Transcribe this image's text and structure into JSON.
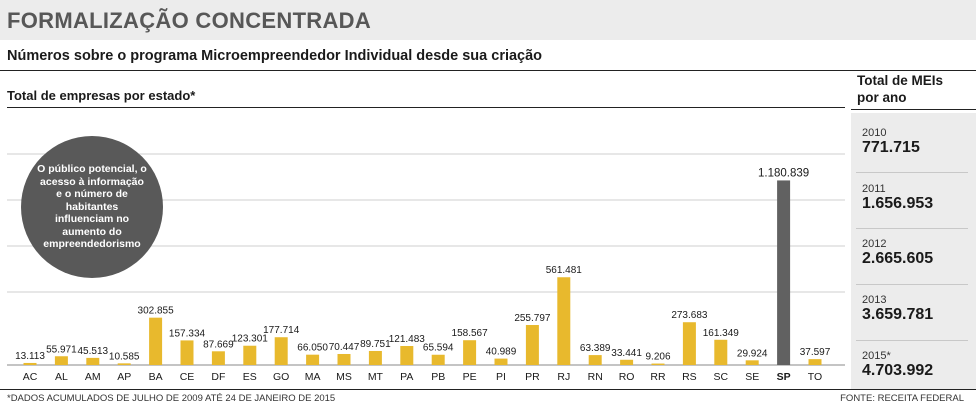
{
  "header": {
    "title": "FORMALIZAÇÃO CONCENTRADA",
    "subtitle": "Números sobre o programa Microempreendedor Individual desde sua criação",
    "chart_label": "Total de empresas por estado*"
  },
  "bubble_text": "O público potencial, o acesso à informação e o número de habitantes influenciam no aumento do empreendedorismo",
  "colors": {
    "bar": "#e8b92d",
    "highlight": "#616161",
    "grid": "#cfcfcf",
    "panel": "#ececec"
  },
  "chart_data": {
    "type": "bar",
    "title": "Total de empresas por estado*",
    "categories": [
      "AC",
      "AL",
      "AM",
      "AP",
      "BA",
      "CE",
      "DF",
      "ES",
      "GO",
      "MA",
      "MS",
      "MT",
      "PA",
      "PB",
      "PE",
      "PI",
      "PR",
      "RJ",
      "RN",
      "RO",
      "RR",
      "RS",
      "SC",
      "SE",
      "SP",
      "TO"
    ],
    "values": [
      13113,
      55971,
      45513,
      10585,
      302855,
      157334,
      87669,
      123301,
      177714,
      66050,
      70447,
      89751,
      121483,
      65594,
      158567,
      40989,
      255797,
      561481,
      63389,
      33441,
      9206,
      273683,
      161349,
      29924,
      1180839,
      37597
    ],
    "value_labels": [
      "13.113",
      "55.971",
      "45.513",
      "10.585",
      "302.855",
      "157.334",
      "87.669",
      "123.301",
      "177.714",
      "66.050",
      "70.447",
      "89.751",
      "121.483",
      "65.594",
      "158.567",
      "40.989",
      "255.797",
      "561.481",
      "63.389",
      "33.441",
      "9.206",
      "273.683",
      "161.349",
      "29.924",
      "1.180.839",
      "37.597"
    ],
    "highlight": "SP",
    "ylim": [
      0,
      1350000
    ],
    "grid": true
  },
  "sidebar": {
    "heading_line1": "Total de MEIs",
    "heading_line2": "por ano",
    "years": [
      {
        "year": "2010",
        "value": "771.715"
      },
      {
        "year": "2011",
        "value": "1.656.953"
      },
      {
        "year": "2012",
        "value": "2.665.605"
      },
      {
        "year": "2013",
        "value": "3.659.781"
      },
      {
        "year": "2015*",
        "value": "4.703.992"
      }
    ]
  },
  "footer": {
    "footnote": "*DADOS ACUMULADOS DE JULHO DE 2009 ATÉ 24 DE JANEIRO DE 2015",
    "source": "FONTE: RECEITA FEDERAL"
  }
}
